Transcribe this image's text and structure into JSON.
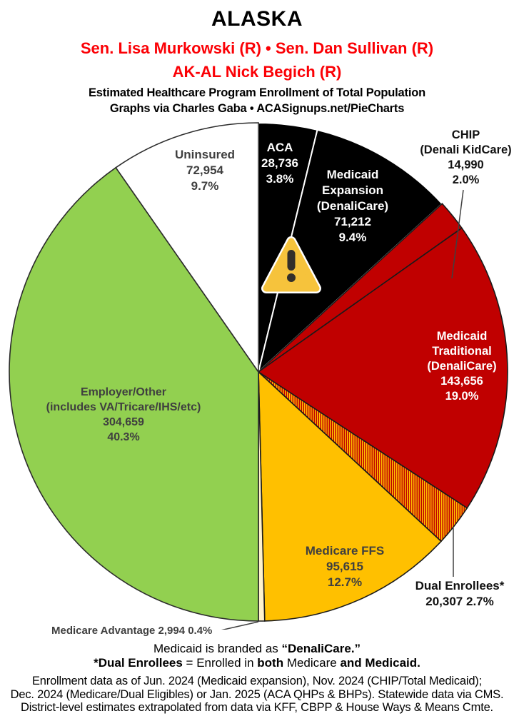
{
  "header": {
    "state": "ALASKA",
    "senators": "Sen. Lisa Murkowski (R) • Sen. Dan Sullivan (R)",
    "representative": "AK-AL Nick Begich (R)",
    "subtitle1": "Estimated Healthcare Program Enrollment of Total Population",
    "subtitle2": "Graphs via Charles Gaba  •  ACASignups.net/PieCharts"
  },
  "colors": {
    "header_red": "#FB0005",
    "slice_black": "#000000",
    "slice_red": "#C00000",
    "slice_yellow": "#FFC000",
    "slice_green": "#92D050",
    "slice_white": "#FFFFFF",
    "slice_pale_yellow": "#FFF2CC",
    "dark_label": "#3F3F3F",
    "warning_yellow": "#F6C33C"
  },
  "chart_data": {
    "type": "pie",
    "title": "Estimated Healthcare Program Enrollment of Total Population — Alaska",
    "start_angle_deg": 0,
    "direction": "clockwise",
    "slices": [
      {
        "key": "aca",
        "name": "ACA",
        "value": 28736,
        "value_str": "28,736",
        "pct": 3.8,
        "pct_str": "3.8%",
        "color": "#000000",
        "stroke": "#FFFFFF"
      },
      {
        "key": "medicaid-expansion",
        "name": "Medicaid Expansion (DenaliCare)",
        "value": 71212,
        "value_str": "71,212",
        "pct": 9.4,
        "pct_str": "9.4%",
        "color": "#000000",
        "stroke": "#FFFFFF"
      },
      {
        "key": "chip",
        "name": "CHIP (Denali KidCare)",
        "value": 14990,
        "value_str": "14,990",
        "pct": 2.0,
        "pct_str": "2.0%",
        "color": "#C00000",
        "stroke": "#1A1A1A"
      },
      {
        "key": "medicaid-traditional",
        "name": "Medicaid Traditional (DenaliCare)",
        "value": 143656,
        "value_str": "143,656",
        "pct": 19.0,
        "pct_str": "19.0%",
        "color": "#C00000",
        "stroke": "#1A1A1A"
      },
      {
        "key": "dual-enrollees",
        "name": "Dual Enrollees*",
        "value": 20307,
        "value_str": "20,307",
        "pct": 2.7,
        "pct_str": "2.7%",
        "color": "pattern",
        "stroke": "#1A1A1A"
      },
      {
        "key": "medicare-ffs",
        "name": "Medicare FFS",
        "value": 95615,
        "value_str": "95,615",
        "pct": 12.7,
        "pct_str": "12.7%",
        "color": "#FFC000",
        "stroke": "#1A1A1A"
      },
      {
        "key": "medicare-advantage",
        "name": "Medicare Advantage",
        "value": 2994,
        "value_str": "2,994",
        "pct": 0.4,
        "pct_str": "0.4%",
        "color": "#FFF2CC",
        "stroke": "#1A1A1A"
      },
      {
        "key": "employer-other",
        "name": "Employer/Other (includes VA/Tricare/IHS/etc)",
        "value": 304659,
        "value_str": "304,659",
        "pct": 40.3,
        "pct_str": "40.3%",
        "color": "#92D050",
        "stroke": "#2B2B2B"
      },
      {
        "key": "uninsured",
        "name": "Uninsured",
        "value": 72954,
        "value_str": "72,954",
        "pct": 9.7,
        "pct_str": "9.7%",
        "color": "#FFFFFF",
        "stroke": "#2B2B2B"
      }
    ]
  },
  "labels": {
    "uninsured": {
      "lines": [
        "Uninsured",
        "72,954",
        "9.7%"
      ]
    },
    "aca": {
      "lines": [
        "ACA",
        "28,736",
        "3.8%"
      ]
    },
    "expansion": {
      "lines": [
        "Medicaid",
        "Expansion",
        "(DenaliCare)",
        "71,212",
        "9.4%"
      ]
    },
    "chip": {
      "lines": [
        "CHIP",
        "(Denali KidCare)",
        "14,990",
        "2.0%"
      ]
    },
    "traditional": {
      "lines": [
        "Medicaid",
        "Traditional",
        "(DenaliCare)",
        "143,656",
        "19.0%"
      ]
    },
    "dual": {
      "lines": [
        "Dual Enrollees*",
        "20,307 2.7%"
      ]
    },
    "ffs": {
      "lines": [
        "Medicare FFS",
        "95,615",
        "12.7%"
      ]
    },
    "employer": {
      "lines": [
        "Employer/Other",
        "(includes VA/Tricare/IHS/etc)",
        "304,659",
        "40.3%"
      ]
    },
    "madv": {
      "line": "Medicare Advantage 2,994 0.4%"
    }
  },
  "footnotes": {
    "branding_prefix": "Medicaid is branded as ",
    "branding_bold": "“DenaliCare.”",
    "dual_bold1": "*Dual Enrollees",
    "dual_mid1": " = Enrolled in ",
    "dual_bold2": "both",
    "dual_mid2": " Medicare ",
    "dual_bold3": "and Medicaid.",
    "source_line1": "Enrollment data as of Jun. 2024 (Medicaid expansion), Nov. 2024 (CHIP/Total Medicaid);",
    "source_line2": "Dec. 2024 (Medicare/Dual Eligibles) or Jan. 2025 (ACA QHPs & BHPs). Statewide data via CMS.",
    "source_line3": "District-level estimates extrapolated from data via KFF, CBPP & House Ways & Means Cmte."
  }
}
